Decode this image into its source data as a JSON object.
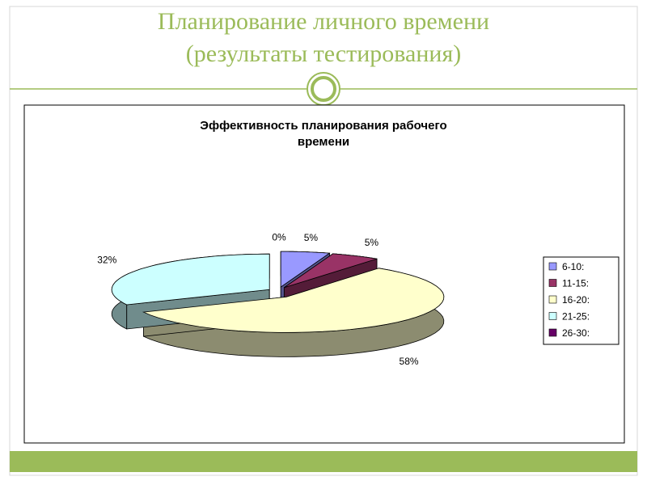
{
  "slide": {
    "title_lines": [
      "Планирование личного времени",
      "(результаты тестирования)"
    ]
  },
  "chart_data": {
    "type": "pie",
    "title": "Эффективность  планирования рабочего времени",
    "categories": [
      "6-10:",
      "11-15:",
      "16-20:",
      "21-25:",
      "26-30:"
    ],
    "values": [
      5,
      5,
      58,
      32,
      0
    ],
    "value_labels": [
      "5%",
      "5%",
      "58%",
      "32%",
      "0%"
    ],
    "colors": [
      "#9999ff",
      "#993366",
      "#ffffcc",
      "#ccffff",
      "#660066"
    ],
    "legend": "right"
  }
}
